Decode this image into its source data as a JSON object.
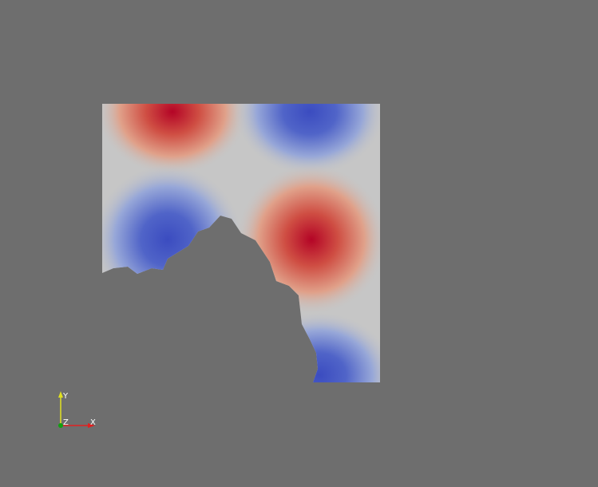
{
  "viewport": {
    "background": "#6e6e6e"
  },
  "field": {
    "colormap": "cool-to-warm",
    "colors": {
      "low": "#3b4cc0",
      "mid": "#c6c6c6",
      "high": "#b40426"
    }
  },
  "orientation_axes": {
    "y_label": "Y",
    "z_label": "Z",
    "x_label": "X",
    "colors": {
      "x": "#e02020",
      "y": "#e0e020",
      "z": "#10a010"
    }
  }
}
